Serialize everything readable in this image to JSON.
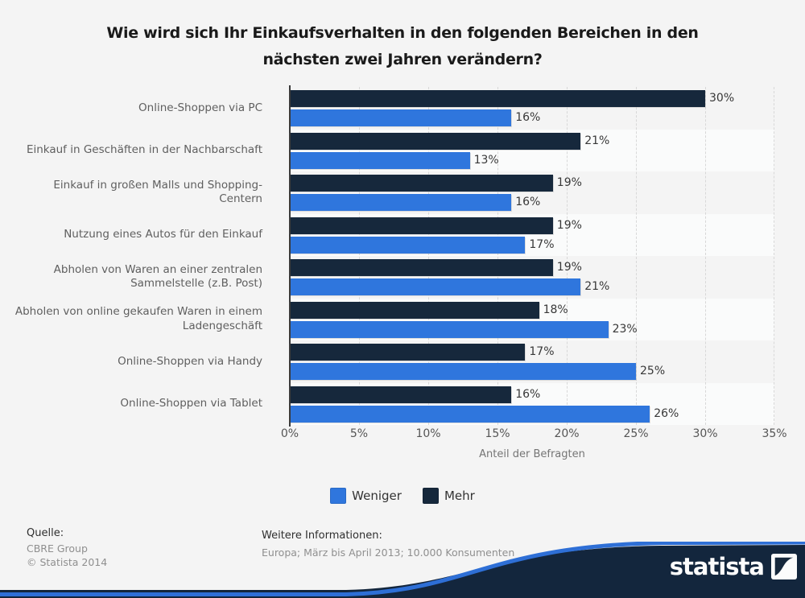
{
  "header": {
    "title_line1": "Wie wird sich Ihr Einkaufsverhalten in den folgenden Bereichen in den",
    "title_line2": "nächsten zwei Jahren verändern?"
  },
  "chart_data": {
    "type": "bar",
    "orientation": "horizontal",
    "title": "Wie wird sich Ihr Einkaufsverhalten in den folgenden Bereichen in den nächsten zwei Jahren verändern?",
    "categories": [
      [
        "Online-Shoppen via PC"
      ],
      [
        "Einkauf in Geschäften in der Nachbarschaft"
      ],
      [
        "Einkauf in großen Malls und Shopping-",
        "Centern"
      ],
      [
        "Nutzung eines Autos für den Einkauf"
      ],
      [
        "Abholen von Waren an einer zentralen",
        "Sammelstelle (z.B. Post)"
      ],
      [
        "Abholen von online gekaufen Waren in einem",
        "Ladengeschäft"
      ],
      [
        "Online-Shoppen via Handy"
      ],
      [
        "Online-Shoppen via Tablet"
      ]
    ],
    "series": [
      {
        "name": "Weniger",
        "color": "#2f76dd",
        "values": [
          16,
          13,
          16,
          17,
          21,
          23,
          25,
          26
        ]
      },
      {
        "name": "Mehr",
        "color": "#16283c",
        "values": [
          30,
          21,
          19,
          19,
          19,
          18,
          17,
          16
        ]
      }
    ],
    "group_order_top_to_bottom": [
      "Mehr",
      "Weniger"
    ],
    "value_suffix": "%",
    "xlabel": "Anteil der Befragten",
    "xlim": [
      0,
      35
    ],
    "xticks": [
      "0%",
      "5%",
      "10%",
      "15%",
      "20%",
      "25%",
      "30%",
      "35%"
    ],
    "grid": "vertical-dashed",
    "legend_position": "bottom",
    "zebra_rows": true
  },
  "footer": {
    "source_heading": "Quelle:",
    "source_lines": [
      "CBRE Group",
      "© Statista 2014"
    ],
    "info_heading": "Weitere Informationen:",
    "info_line": "Europa; März bis April 2013; 10.000 Konsumenten",
    "brand": "statista"
  },
  "colors": {
    "background": "#f4f4f4",
    "row_alt": "#fafbfb",
    "bar_weniger": "#2f76dd",
    "bar_mehr": "#16283c",
    "gridline": "#d8d8d8",
    "wave_navy": "#13263d",
    "wave_blue": "#2e6fd6"
  }
}
